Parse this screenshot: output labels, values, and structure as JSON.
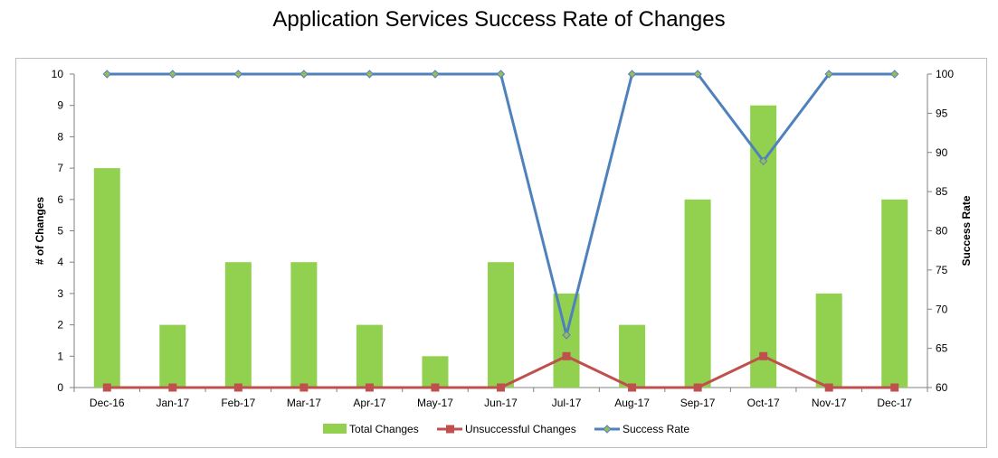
{
  "colors": {
    "bar": "#92D050",
    "unsuccessful": "#C0504D",
    "success_rate": "#4F81BD",
    "success_marker": "#9BBB59",
    "axis": "#808080",
    "text": "#000000"
  },
  "chart_data": {
    "type": "bar",
    "title": "Application Services Success Rate of Changes",
    "ylabel": "# of Changes",
    "y2label": "Success Rate",
    "categories": [
      "Dec-16",
      "Jan-17",
      "Feb-17",
      "Mar-17",
      "Apr-17",
      "May-17",
      "Jun-17",
      "Jul-17",
      "Aug-17",
      "Sep-17",
      "Oct-17",
      "Nov-17",
      "Dec-17"
    ],
    "ylim": [
      0,
      10
    ],
    "yticks": [
      0,
      1,
      2,
      3,
      4,
      5,
      6,
      7,
      8,
      9,
      10
    ],
    "y2lim": [
      60,
      100
    ],
    "y2ticks": [
      60,
      65,
      70,
      75,
      80,
      85,
      90,
      95,
      100
    ],
    "grid": false,
    "legend_position": "bottom",
    "series": [
      {
        "name": "Total Changes",
        "type": "bar",
        "axis": "left",
        "values": [
          7,
          2,
          4,
          4,
          2,
          1,
          4,
          3,
          2,
          6,
          9,
          3,
          6
        ]
      },
      {
        "name": "Unsuccessful Changes",
        "type": "line",
        "axis": "left",
        "marker": "square",
        "values": [
          0,
          0,
          0,
          0,
          0,
          0,
          0,
          1,
          0,
          0,
          1,
          0,
          0
        ]
      },
      {
        "name": "Success Rate",
        "type": "line",
        "axis": "right",
        "marker": "diamond",
        "values": [
          100,
          100,
          100,
          100,
          100,
          100,
          100,
          66.7,
          100,
          100,
          88.9,
          100,
          100
        ]
      }
    ]
  }
}
